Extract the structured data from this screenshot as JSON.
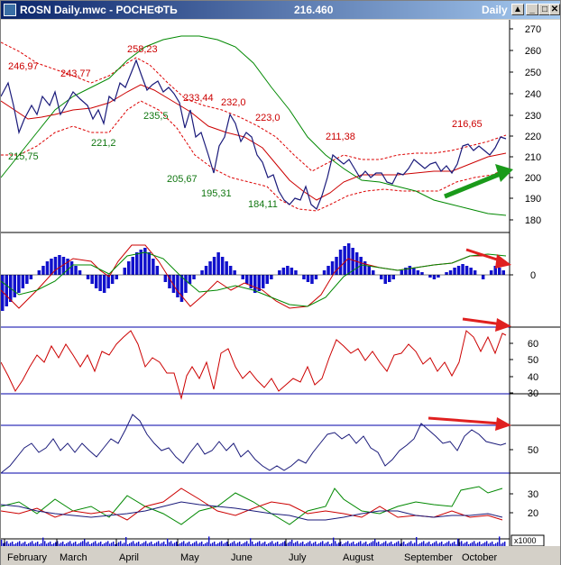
{
  "window": {
    "title": "ROSN Daily.mwc - РОСНЕФТЬ",
    "price": "216.460",
    "interval": "Daily",
    "buttons": [
      "▲",
      "_",
      "□",
      "✕"
    ]
  },
  "price_axis": [
    "270",
    "260",
    "250",
    "240",
    "230",
    "220",
    "210",
    "200",
    "190",
    "180"
  ],
  "macd_axis": [
    "0"
  ],
  "rsi_axis": [
    "60",
    "50",
    "40",
    "30"
  ],
  "stoch_axis": [
    "50"
  ],
  "dmi_axis": [
    "30",
    "20"
  ],
  "volume_unit": "x1000",
  "months": [
    "February",
    "March",
    "April",
    "May",
    "June",
    "July",
    "August",
    "September",
    "October"
  ],
  "annotations": {
    "red": [
      "246,97",
      "243,77",
      "258,23",
      "233,44",
      "232,0",
      "223,0",
      "211,38",
      "216,65"
    ],
    "green": [
      "215,75",
      "221,2",
      "235,5",
      "205,67",
      "195,31",
      "184,11"
    ]
  },
  "colors": {
    "price_line": "#1a1a7a",
    "ma_fast": "#cc0000",
    "ma_slow": "#008800",
    "envelope": "#dd0000",
    "histogram": "#1010cc",
    "arrow_red": "#e02020",
    "arrow_green": "#1a9a1a",
    "panel_bg": "#ffffff",
    "window_bg": "#d4d0c8"
  }
}
